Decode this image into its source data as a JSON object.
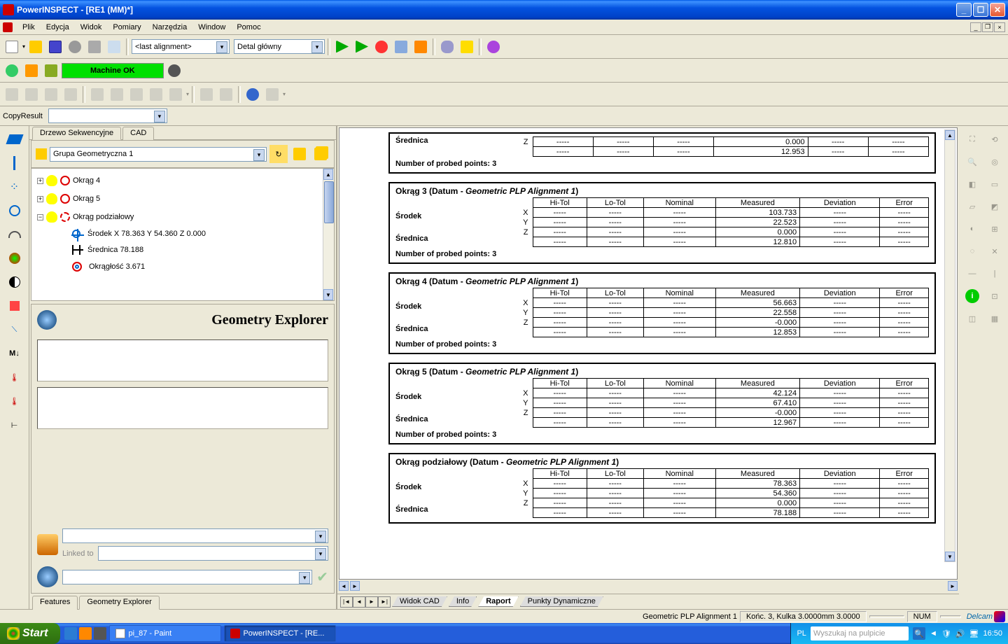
{
  "window": {
    "title": "PowerINSPECT  - [RE1 (MM)*]"
  },
  "menu": {
    "items": [
      "Plik",
      "Edycja",
      "Widok",
      "Pomiary",
      "Narzędzia",
      "Window",
      "Pomoc"
    ]
  },
  "toolbar1": {
    "alignment_combo": "<last alignment>",
    "detail_combo": "Detal główny"
  },
  "toolbar2": {
    "machine_status": "Machine OK"
  },
  "toolbar3": {
    "copy_label": "CopyResult"
  },
  "left_tabs": {
    "tab1": "Drzewo Sekwencyjne",
    "tab2": "CAD"
  },
  "tree": {
    "group_combo": "Grupa Geometryczna 1",
    "items": [
      {
        "exp": "+",
        "label": "Okrąg 4"
      },
      {
        "exp": "+",
        "label": "Okrąg 5"
      },
      {
        "exp": "−",
        "label": "Okrąg podziałowy"
      }
    ],
    "sub": {
      "srodek": "Środek  X   78.363 Y   54.360 Z    0.000",
      "srednica": "Średnica  78.188",
      "okraglosc": "Okrągłość  3.671"
    }
  },
  "geo_explorer": {
    "title": "Geometry Explorer",
    "linked_to": "Linked to"
  },
  "feat_tabs": {
    "tab1": "Features",
    "tab2": "Geometry Explorer"
  },
  "report": {
    "columns": [
      "Hi-Tol",
      "Lo-Tol",
      "Nominal",
      "Measured",
      "Deviation",
      "Error"
    ],
    "dash": "-----",
    "srodek": "Środek",
    "srednica": "Średnica",
    "probed_prefix": "Number of probed points: ",
    "sections": [
      {
        "partial": true,
        "srednica_measured": "12.953",
        "probed": "3"
      },
      {
        "title_a": "Okrąg 3 (Datum - ",
        "title_b": "Geometric PLP Alignment 1",
        "title_c": ")",
        "rows": [
          {
            "axis": "X",
            "measured": "103.733"
          },
          {
            "axis": "Y",
            "measured": "22.523"
          },
          {
            "axis": "Z",
            "measured": "0.000"
          }
        ],
        "srednica_measured": "12.810",
        "probed": "3"
      },
      {
        "title_a": "Okrąg 4 (Datum - ",
        "title_b": "Geometric PLP Alignment 1",
        "title_c": ")",
        "rows": [
          {
            "axis": "X",
            "measured": "56.663"
          },
          {
            "axis": "Y",
            "measured": "22.558"
          },
          {
            "axis": "Z",
            "measured": "-0.000"
          }
        ],
        "srednica_measured": "12.853",
        "probed": "3"
      },
      {
        "title_a": "Okrąg 5 (Datum - ",
        "title_b": "Geometric PLP Alignment 1",
        "title_c": ")",
        "rows": [
          {
            "axis": "X",
            "measured": "42.124"
          },
          {
            "axis": "Y",
            "measured": "67.410"
          },
          {
            "axis": "Z",
            "measured": "-0.000"
          }
        ],
        "srednica_measured": "12.967",
        "probed": "3"
      },
      {
        "title_a": "Okrąg podziałowy (Datum - ",
        "title_b": "Geometric PLP Alignment 1",
        "title_c": ")",
        "rows": [
          {
            "axis": "X",
            "measured": "78.363"
          },
          {
            "axis": "Y",
            "measured": "54.360"
          },
          {
            "axis": "Z",
            "measured": "0.000"
          }
        ],
        "srednica_measured": "78.188",
        "probed": null
      }
    ]
  },
  "bottom_tabs": {
    "t1": "Widok CAD",
    "t2": "Info",
    "t3": "Raport",
    "t4": "Punkty Dynamiczne"
  },
  "statusbar": {
    "alignment": "Geometric PLP Alignment 1",
    "probe": "Końc. 3, Kulka 3.0000mm 3.0000",
    "num": "NUM",
    "brand": "Delcam"
  },
  "taskbar": {
    "start": "Start",
    "task1": "pi_87 - Paint",
    "task2": "PowerINSPECT  - [RE...",
    "lang": "PL",
    "search_placeholder": "Wyszukaj na pulpicie",
    "clock": "16:50"
  }
}
